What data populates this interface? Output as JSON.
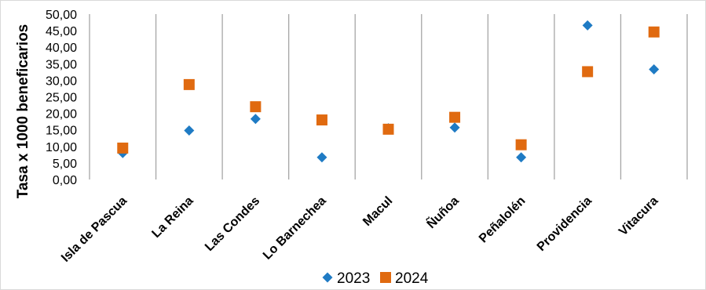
{
  "chart_data": {
    "type": "scatter",
    "categories": [
      "Isla de Pascua",
      "La Reina",
      "Las Condes",
      "Lo Barnechea",
      "Macul",
      "Ñuñoa",
      "Peñalolén",
      "Providencia",
      "Vitacura"
    ],
    "series": [
      {
        "name": "2023",
        "marker": "diamond",
        "color": "#1f7bc4",
        "values": [
          8.0,
          14.8,
          18.3,
          6.7,
          15.5,
          15.7,
          6.7,
          46.6,
          33.3
        ]
      },
      {
        "name": "2024",
        "marker": "square",
        "color": "#e06a10",
        "values": [
          9.5,
          28.7,
          22.0,
          18.0,
          15.2,
          18.8,
          10.5,
          32.6,
          44.6
        ]
      }
    ],
    "ylabel": "Tasa x 1000 beneficarios",
    "ylim": [
      0,
      50
    ],
    "ytick_labels": [
      "0,00",
      "5,00",
      "10,00",
      "15,00",
      "20,00",
      "25,00",
      "30,00",
      "35,00",
      "40,00",
      "45,00",
      "50,00"
    ],
    "grid": "vertical category separators",
    "legend": "bottom-center"
  }
}
